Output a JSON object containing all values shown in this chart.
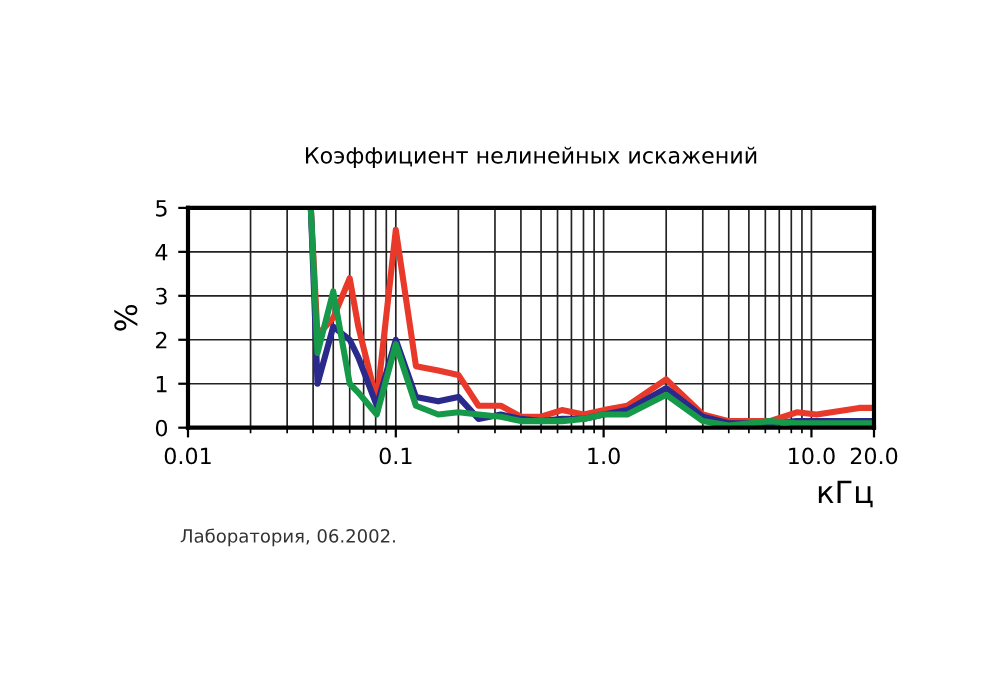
{
  "chart_data": {
    "type": "line",
    "title": "Коэффициент нелинейных искажений",
    "xlabel": "кГц",
    "ylabel": "%",
    "log": "x",
    "grid": true,
    "line_style": "solid",
    "xlim": [
      0.01,
      20
    ],
    "xticks": [
      0.01,
      0.1,
      {
        "value": 1,
        "label": "1.0"
      },
      {
        "value": 10,
        "label": "10.0"
      },
      {
        "value": 20,
        "label": "20.0"
      }
    ],
    "ylim": [
      0,
      5
    ],
    "yticks": [
      0,
      1,
      2,
      3,
      4,
      5
    ],
    "x": [
      0.039,
      0.042,
      0.05,
      0.06,
      0.066,
      0.081,
      0.1,
      0.125,
      0.16,
      0.2,
      0.25,
      0.32,
      0.4,
      0.5,
      0.63,
      0.8,
      1.0,
      1.3,
      2.0,
      3.0,
      4.0,
      6.3,
      8.5,
      10.6,
      17,
      20
    ],
    "series": [
      {
        "color": "#e8392b",
        "values": [
          5,
          2.1,
          2.5,
          3.4,
          2.3,
          0.6,
          4.5,
          1.4,
          1.3,
          1.2,
          0.5,
          0.5,
          0.25,
          0.25,
          0.4,
          0.3,
          0.4,
          0.5,
          1.1,
          0.3,
          0.15,
          0.15,
          0.35,
          0.3,
          0.45,
          0.45
        ]
      },
      {
        "color": "#2a2a8c",
        "values": [
          5,
          1.0,
          2.3,
          2.0,
          1.6,
          0.5,
          2.0,
          0.7,
          0.6,
          0.7,
          0.2,
          0.3,
          0.2,
          0.15,
          0.2,
          0.2,
          0.3,
          0.4,
          0.9,
          0.25,
          0.1,
          0.1,
          0.15,
          0.15,
          0.15,
          0.15
        ]
      },
      {
        "color": "#169a4a",
        "values": [
          5,
          1.7,
          3.1,
          1.0,
          0.8,
          0.3,
          1.9,
          0.5,
          0.3,
          0.35,
          0.3,
          0.25,
          0.15,
          0.15,
          0.15,
          0.2,
          0.3,
          0.3,
          0.75,
          0.15,
          0.05,
          0.15,
          0.1,
          0.1,
          0.1,
          0.1
        ]
      }
    ],
    "annotations": [
      "Лаборатория, 06.2002."
    ]
  }
}
